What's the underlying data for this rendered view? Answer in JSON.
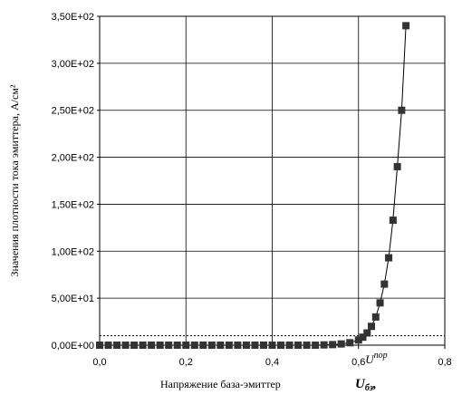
{
  "chart_data": {
    "type": "scatter",
    "title": "",
    "xlabel": "Напряжение база-эмиттер",
    "xlabel_symbol": "U",
    "xlabel_symbol_sub": "бэ",
    "xlabel_symbol_suffix": ",",
    "ylabel": "Значения плотности тока эмиттера, А/см²",
    "xlim": [
      0,
      0.8
    ],
    "ylim": [
      0,
      350
    ],
    "x_ticks": [
      "0,0",
      "0,2",
      "0,4",
      "0,6",
      "0,8"
    ],
    "y_ticks": [
      "0,00E+00",
      "5,00E+01",
      "1,00E+02",
      "1,50E+02",
      "2,00E+02",
      "2,50E+02",
      "3,00E+02",
      "3,50E+02"
    ],
    "grid": true,
    "threshold_line_y": 10,
    "annotation": {
      "main": "U",
      "sub": "пор",
      "x": 0.62
    },
    "series": [
      {
        "marker": "square",
        "color": "#333333",
        "x": [
          0.0,
          0.02,
          0.04,
          0.06,
          0.08,
          0.1,
          0.12,
          0.14,
          0.16,
          0.18,
          0.2,
          0.22,
          0.24,
          0.26,
          0.28,
          0.3,
          0.32,
          0.34,
          0.36,
          0.38,
          0.4,
          0.42,
          0.44,
          0.46,
          0.48,
          0.5,
          0.52,
          0.54,
          0.56,
          0.58,
          0.6,
          0.61,
          0.62,
          0.63,
          0.64,
          0.65,
          0.66,
          0.67,
          0.68,
          0.69,
          0.7,
          0.71,
          0.72,
          0.73
        ],
        "y": [
          0,
          0,
          0,
          0,
          0,
          0,
          0,
          0,
          0,
          0,
          0,
          0,
          0,
          0,
          0,
          0,
          0,
          0,
          0,
          0,
          0,
          0,
          0,
          0,
          0,
          0,
          0.3,
          0.6,
          1.3,
          2.6,
          5.5,
          8.5,
          13,
          20,
          30,
          45,
          65,
          93,
          133,
          190,
          250,
          340,
          null,
          null
        ]
      }
    ]
  }
}
